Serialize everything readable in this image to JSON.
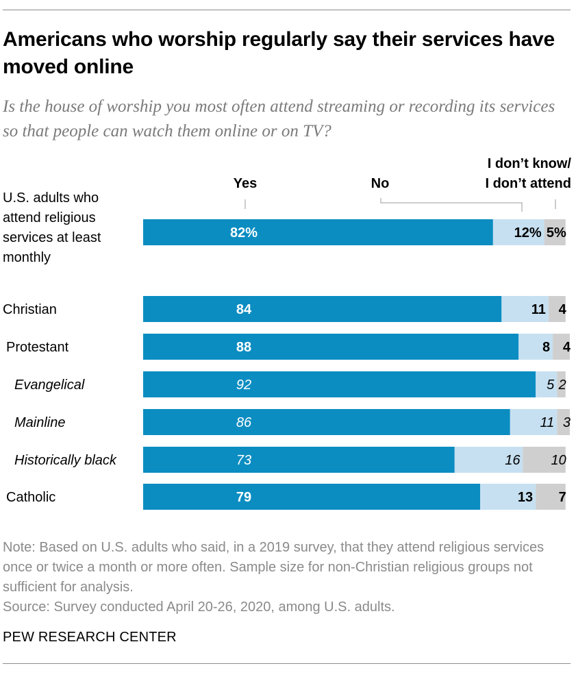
{
  "title": "Americans who worship regularly say their services have moved online",
  "subtitle": "Is the house of worship you most often attend streaming or recording its services so that people can watch them online or on TV?",
  "note": "Note: Based on U.S. adults who said, in a 2019 survey, that they attend religious services once or twice a month or more often. Sample size for non-Christian religious groups not sufficient for analysis.",
  "source": "Source: Survey conducted April 20-26, 2020, among U.S. adults.",
  "brand": "PEW RESEARCH CENTER",
  "colors": {
    "yes": "#0b8dc1",
    "no": "#c6e0f1",
    "dontknow": "#cfcfcf",
    "rule": "#8c8c8c",
    "bracket": "#9a9a9a"
  },
  "chart_data": {
    "type": "bar",
    "orientation": "horizontal",
    "stacked": true,
    "xlim": [
      0,
      100
    ],
    "series": [
      {
        "key": "yes",
        "name": "Yes",
        "values": [
          82,
          84,
          88,
          92,
          86,
          73,
          79
        ]
      },
      {
        "key": "no",
        "name": "No",
        "values": [
          12,
          11,
          8,
          5,
          11,
          16,
          13
        ]
      },
      {
        "key": "dontknow",
        "name": "I don’t know/ I don’t attend",
        "name_lines": [
          "I don’t know/",
          "I don’t attend"
        ],
        "values": [
          5,
          4,
          4,
          2,
          3,
          10,
          7
        ]
      }
    ],
    "categories": [
      {
        "label": "U.S. adults who attend religious services at least monthly",
        "label_lines": [
          "U.S. adults who",
          "attend religious",
          "services at least",
          "monthly"
        ],
        "labels": [
          "82%",
          "12%",
          "5%"
        ],
        "italic": false,
        "bold_values": true
      },
      {
        "label": "Christian",
        "label_lines": [
          "Christian"
        ],
        "labels": [
          "84",
          "11",
          "4"
        ],
        "italic": false,
        "bold_values": true
      },
      {
        "label": "Protestant",
        "label_lines": [
          "Protestant"
        ],
        "labels": [
          "88",
          "8",
          "4"
        ],
        "italic": false,
        "bold_values": true
      },
      {
        "label": "Evangelical",
        "label_lines": [
          "Evangelical"
        ],
        "labels": [
          "92",
          "5",
          "2"
        ],
        "italic": true,
        "bold_values": false
      },
      {
        "label": "Mainline",
        "label_lines": [
          "Mainline"
        ],
        "labels": [
          "86",
          "11",
          "3"
        ],
        "italic": true,
        "bold_values": false
      },
      {
        "label": "Historically black",
        "label_lines": [
          "Historically black"
        ],
        "labels": [
          "73",
          "16",
          "10"
        ],
        "italic": true,
        "bold_values": false
      },
      {
        "label": "Catholic",
        "label_lines": [
          "Catholic"
        ],
        "labels": [
          "79",
          "13",
          "7"
        ],
        "italic": false,
        "bold_values": true
      }
    ]
  }
}
